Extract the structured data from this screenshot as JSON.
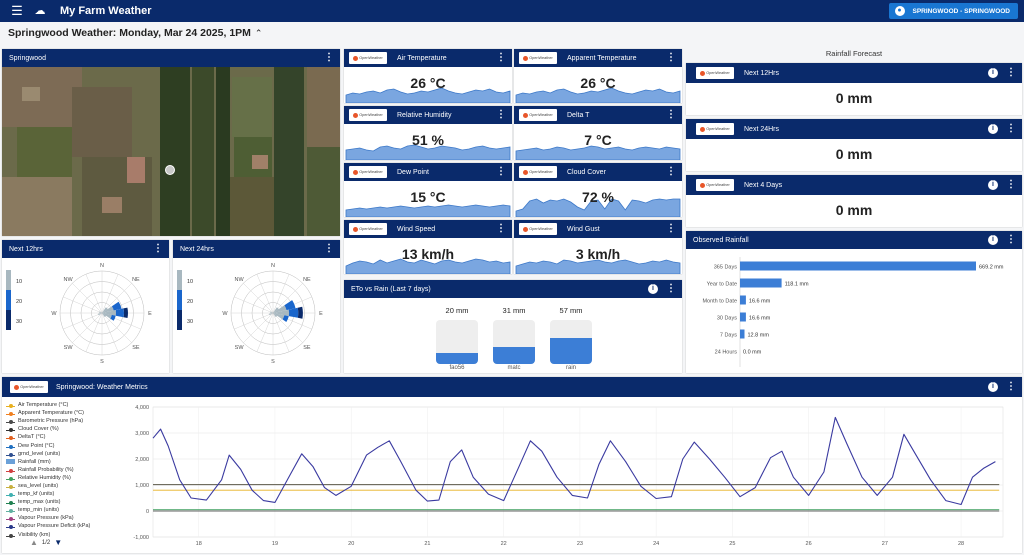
{
  "app": {
    "title": "My Farm Weather",
    "user_label": "SPRINGWOOD - SPRINGWOOD"
  },
  "headline": "Springwood Weather: Monday, Mar 24 2025, 1PM",
  "map_card": {
    "title": "Springwood"
  },
  "wind_cards": [
    {
      "title": "Next 12hrs",
      "legend": [
        "10",
        "20",
        "30"
      ],
      "directions": [
        "N",
        "NE",
        "E",
        "SE",
        "S",
        "SW",
        "W",
        "NW"
      ]
    },
    {
      "title": "Next 24hrs",
      "legend": [
        "10",
        "20",
        "30"
      ],
      "directions": [
        "N",
        "NE",
        "E",
        "SE",
        "S",
        "SW",
        "W",
        "NW"
      ]
    }
  ],
  "provider_label": "OpenWeather",
  "tiles": [
    {
      "title": "Air Temperature",
      "value": "26 °C"
    },
    {
      "title": "Apparent Temperature",
      "value": "26 °C"
    },
    {
      "title": "Relative Humidity",
      "value": "51 %"
    },
    {
      "title": "Delta T",
      "value": "7 °C"
    },
    {
      "title": "Dew Point",
      "value": "15 °C"
    },
    {
      "title": "Cloud Cover",
      "value": "72 %"
    },
    {
      "title": "Wind Speed",
      "value": "13 km/h"
    },
    {
      "title": "Wind Gust",
      "value": "3 km/h"
    }
  ],
  "eto": {
    "title": "ETo vs Rain (Last 7 days)",
    "bars": [
      {
        "value": "20 mm",
        "label": "fao56",
        "fill": 0.25
      },
      {
        "value": "31 mm",
        "label": "matc",
        "fill": 0.38
      },
      {
        "value": "57 mm",
        "label": "rain",
        "fill": 0.6
      }
    ]
  },
  "rainfall_forecast": {
    "title": "Rainfall Forecast",
    "items": [
      {
        "title": "Next 12Hrs",
        "value": "0 mm"
      },
      {
        "title": "Next 24Hrs",
        "value": "0 mm"
      },
      {
        "title": "Next 4 Days",
        "value": "0 mm"
      }
    ]
  },
  "observed": {
    "title": "Observed Rainfall",
    "rows": [
      {
        "label": "365 Days",
        "value": "669.2 mm",
        "amount": 669.2
      },
      {
        "label": "Year to Date",
        "value": "118.1 mm",
        "amount": 118.1
      },
      {
        "label": "Month to Date",
        "value": "16.6 mm",
        "amount": 16.6
      },
      {
        "label": "30 Days",
        "value": "16.6 mm",
        "amount": 16.6
      },
      {
        "label": "7 Days",
        "value": "12.8 mm",
        "amount": 12.8
      },
      {
        "label": "24 Hours",
        "value": "0.0 mm",
        "amount": 0
      }
    ]
  },
  "metrics": {
    "title": "Springwood: Weather Metrics",
    "legend": [
      {
        "name": "Air Temperature (°C)",
        "color": "#e8b020"
      },
      {
        "name": "Apparent Temperature (°C)",
        "color": "#f08020"
      },
      {
        "name": "Barometric Pressure (hPa)",
        "color": "#4a4a4a"
      },
      {
        "name": "Cloud Cover (%)",
        "color": "#333333"
      },
      {
        "name": "DeltaT (°C)",
        "color": "#e06020"
      },
      {
        "name": "Dew Point (°C)",
        "color": "#2070c0"
      },
      {
        "name": "grnd_level (units)",
        "color": "#305090"
      },
      {
        "name": "Rainfall (mm)",
        "color": "#6aa0d8"
      },
      {
        "name": "Rainfall Probability (%)",
        "color": "#d04040"
      },
      {
        "name": "Relative Humidity (%)",
        "color": "#40a060"
      },
      {
        "name": "sea_level (units)",
        "color": "#c8b040"
      },
      {
        "name": "temp_kf (units)",
        "color": "#40b0b0"
      },
      {
        "name": "temp_max (units)",
        "color": "#208050"
      },
      {
        "name": "temp_min (units)",
        "color": "#60b0a0"
      },
      {
        "name": "Vapour Pressure (kPa)",
        "color": "#a04080"
      },
      {
        "name": "Vapour Pressure Deficit (kPa)",
        "color": "#2a3a8a"
      },
      {
        "name": "Visibility (km)",
        "color": "#444444"
      }
    ],
    "pager": "1/2"
  },
  "chart_data": {
    "type": "line",
    "xlabel": "",
    "ylabel": "",
    "ylim": [
      -1000,
      4000
    ],
    "y_ticks": [
      "4,000",
      "3,000",
      "2,000",
      "1,000",
      "0",
      "-1,000"
    ],
    "x_ticks": [
      "18",
      "19",
      "20",
      "21",
      "22",
      "23",
      "24",
      "25",
      "26",
      "27",
      "28"
    ],
    "series": [
      {
        "name": "Visibility (km)",
        "x": [
          17.4,
          17.5,
          17.6,
          17.75,
          17.9,
          18.1,
          18.3,
          18.4,
          18.55,
          18.7,
          18.85,
          19.0,
          19.2,
          19.35,
          19.5,
          19.65,
          19.8,
          20.0,
          20.2,
          20.35,
          20.5,
          20.65,
          20.85,
          21.0,
          21.15,
          21.3,
          21.45,
          21.6,
          21.8,
          22.0,
          22.2,
          22.35,
          22.5,
          22.7,
          22.9,
          23.1,
          23.25,
          23.4,
          23.6,
          23.8,
          24.0,
          24.2,
          24.35,
          24.5,
          24.7,
          24.9,
          25.1,
          25.3,
          25.5,
          25.65,
          25.8,
          26.0,
          26.2,
          26.35,
          26.5,
          26.7,
          26.9,
          27.1,
          27.25,
          27.4,
          27.6,
          27.8,
          28.0,
          28.15,
          28.3,
          28.45
        ],
        "y": [
          2800,
          3150,
          2500,
          1200,
          500,
          420,
          1200,
          2150,
          1600,
          800,
          400,
          330,
          1400,
          2200,
          1700,
          900,
          600,
          950,
          2150,
          2450,
          2700,
          1900,
          800,
          380,
          420,
          1900,
          2350,
          1300,
          650,
          400,
          1700,
          2700,
          2300,
          1300,
          600,
          500,
          1800,
          2700,
          1900,
          950,
          480,
          550,
          2000,
          2650,
          2000,
          1300,
          550,
          900,
          2050,
          2300,
          1300,
          600,
          1500,
          3600,
          2600,
          1300,
          600,
          1300,
          2950,
          2200,
          1200,
          400,
          250,
          1300,
          1650,
          1900
        ]
      },
      {
        "name": "Barometric Pressure (hPa)",
        "x": [
          17.4,
          28.5
        ],
        "y": [
          1010,
          1010
        ]
      },
      {
        "name": "sea_level (units)",
        "x": [
          17.4,
          28.5
        ],
        "y": [
          1015,
          1015
        ]
      },
      {
        "name": "Air Temperature (°C)",
        "x": [
          17.4,
          28.5
        ],
        "y": [
          800,
          800
        ]
      },
      {
        "name": "Relative Humidity (%)",
        "x": [
          17.4,
          28.5
        ],
        "y": [
          50,
          50
        ]
      },
      {
        "name": "Cloud Cover (%)",
        "x": [
          17.4,
          28.5
        ],
        "y": [
          0,
          0
        ]
      }
    ]
  }
}
